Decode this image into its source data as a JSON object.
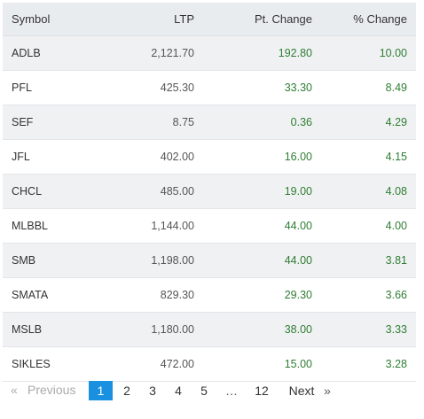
{
  "table": {
    "headers": {
      "symbol": "Symbol",
      "ltp": "LTP",
      "pt_change": "Pt. Change",
      "pct_change": "% Change"
    },
    "rows": [
      {
        "symbol": "ADLB",
        "ltp": "2,121.70",
        "pt_change": "192.80",
        "pct_change": "10.00"
      },
      {
        "symbol": "PFL",
        "ltp": "425.30",
        "pt_change": "33.30",
        "pct_change": "8.49"
      },
      {
        "symbol": "SEF",
        "ltp": "8.75",
        "pt_change": "0.36",
        "pct_change": "4.29"
      },
      {
        "symbol": "JFL",
        "ltp": "402.00",
        "pt_change": "16.00",
        "pct_change": "4.15"
      },
      {
        "symbol": "CHCL",
        "ltp": "485.00",
        "pt_change": "19.00",
        "pct_change": "4.08"
      },
      {
        "symbol": "MLBBL",
        "ltp": "1,144.00",
        "pt_change": "44.00",
        "pct_change": "4.00"
      },
      {
        "symbol": "SMB",
        "ltp": "1,198.00",
        "pt_change": "44.00",
        "pct_change": "3.81"
      },
      {
        "symbol": "SMATA",
        "ltp": "829.30",
        "pt_change": "29.30",
        "pct_change": "3.66"
      },
      {
        "symbol": "MSLB",
        "ltp": "1,180.00",
        "pt_change": "38.00",
        "pct_change": "3.33"
      },
      {
        "symbol": "SIKLES",
        "ltp": "472.00",
        "pt_change": "15.00",
        "pct_change": "3.28"
      }
    ]
  },
  "pagination": {
    "prev_arrow": "«",
    "previous_label": "Previous",
    "pages": [
      "1",
      "2",
      "3",
      "4",
      "5"
    ],
    "ellipsis": "…",
    "last_page": "12",
    "next_label": "Next",
    "next_arrow": "»",
    "active_page": "1"
  },
  "colors": {
    "gain": "#2e7d32",
    "active_page_bg": "#1a90e0",
    "header_bg": "#e9ecef",
    "shaded_row_bg": "#f0f1f3"
  }
}
